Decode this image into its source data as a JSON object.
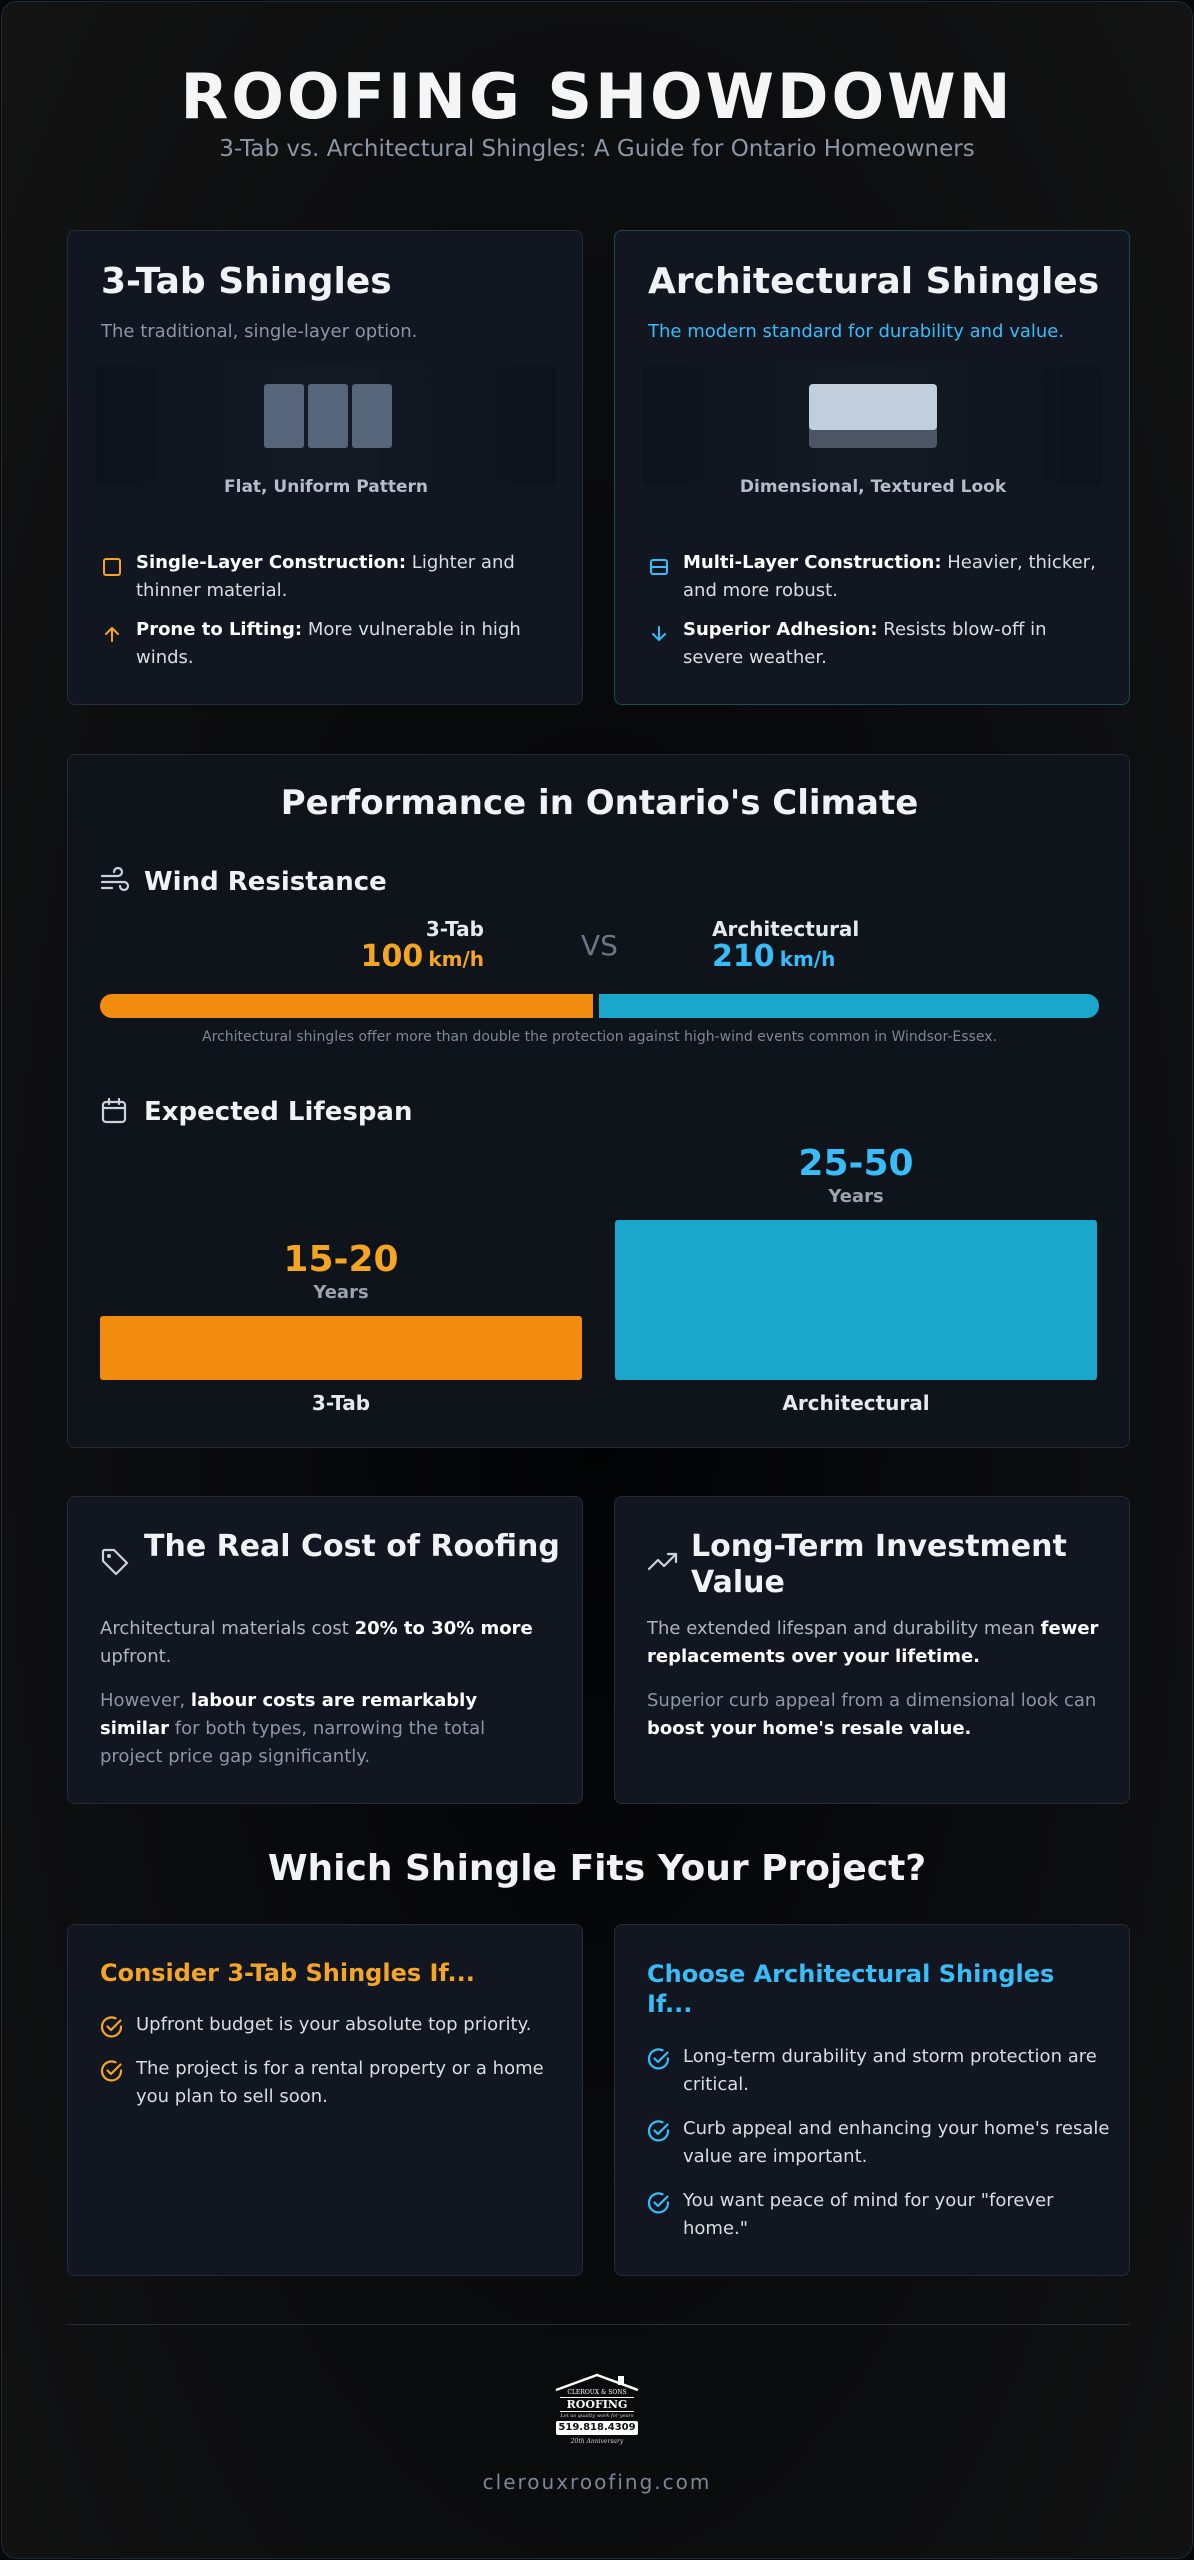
{
  "header": {
    "title": "ROOFING SHOWDOWN",
    "subtitle": "3-Tab vs. Architectural Shingles: A Guide for Ontario Homeowners"
  },
  "comparison": {
    "three_tab": {
      "title": "3-Tab Shingles",
      "description": "The traditional, single-layer option.",
      "pattern_label": "Flat, Uniform Pattern",
      "features": [
        {
          "label": "Single-Layer Construction:",
          "text": "Lighter and thinner material.",
          "icon": "square-icon"
        },
        {
          "label": "Prone to Lifting:",
          "text": "More vulnerable in high winds.",
          "icon": "arrow-up-icon"
        }
      ]
    },
    "architectural": {
      "title": "Architectural Shingles",
      "description": "The modern standard for durability and value.",
      "pattern_label": "Dimensional, Textured Look",
      "features": [
        {
          "label": "Multi-Layer Construction:",
          "text": "Heavier, thicker, and more robust.",
          "icon": "layers-icon"
        },
        {
          "label": "Superior Adhesion:",
          "text": "Resists blow-off in severe weather.",
          "icon": "arrow-down-icon"
        }
      ]
    }
  },
  "performance": {
    "title": "Performance in Ontario's Climate",
    "wind": {
      "heading": "Wind Resistance",
      "left_label": "3-Tab",
      "left_value": "100",
      "left_unit": "km/h",
      "vs": "VS",
      "right_label": "Architectural",
      "right_value": "210",
      "right_unit": "km/h",
      "note": "Architectural shingles offer more than double the protection against high-wind events common in Windsor-Essex.",
      "colors": {
        "three_tab": "#f28c0f",
        "architectural": "#19a8cc"
      }
    },
    "lifespan": {
      "heading": "Expected Lifespan",
      "left_value": "15-20",
      "left_unit": "Years",
      "left_label": "3-Tab",
      "right_value": "25-50",
      "right_unit": "Years",
      "right_label": "Architectural"
    }
  },
  "cost": {
    "title": "The Real Cost of Roofing",
    "p1_a": "Architectural materials cost ",
    "p1_b": "20% to 30% more",
    "p1_c": "upfront.",
    "p2_a": "However, ",
    "p2_b": "labour costs are remarkably",
    "p2_c": "similar",
    "p2_d": " for both types, narrowing the total",
    "p2_e": "project price gap significantly."
  },
  "investment": {
    "title": "Long-Term Investment Value",
    "p1_a": "The extended lifespan and durability mean ",
    "p1_b": "fewer",
    "p1_c": "replacements over your lifetime.",
    "p2_a": "Superior curb appeal from a dimensional look can",
    "p2_b": "boost your home's resale value."
  },
  "fit": {
    "title": "Which Shingle Fits Your Project?",
    "three_tab": {
      "heading": "Consider 3-Tab Shingles If...",
      "items": [
        "Upfront budget is your absolute top priority.",
        "The project is for a rental property or a home you plan to sell soon."
      ]
    },
    "architectural": {
      "heading": "Choose Architectural Shingles If...",
      "items": [
        "Long-term durability and storm protection are critical.",
        "Curb appeal and enhancing your home's resale value are important.",
        "You want peace of mind for your \"forever home.\""
      ]
    }
  },
  "footer": {
    "logo": {
      "line1": "CLEROUX & SONS",
      "line2": "ROOFING",
      "line3": "Let us quality work for years",
      "phone": "519.818.4309",
      "line4": "20th Anniversary"
    },
    "website": "clerouxroofing.com"
  }
}
